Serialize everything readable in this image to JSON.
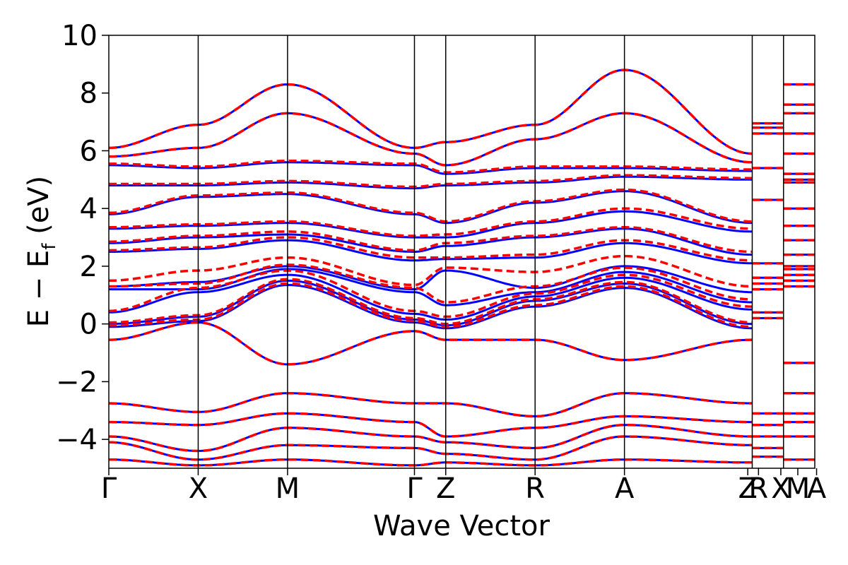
{
  "chart_data": {
    "type": "line",
    "title": "",
    "xlabel": "Wave Vector",
    "ylabel": "E − E",
    "ylabel_sub": "f",
    "ylabel_unit": " (eV)",
    "ylim": [
      -5,
      10
    ],
    "yticks": [
      -4,
      -2,
      0,
      2,
      4,
      6,
      8,
      10
    ],
    "ytick_labels": [
      "−4",
      "−2",
      "0",
      "2",
      "4",
      "6",
      "8",
      "10"
    ],
    "x_kpoint_positions": [
      0,
      1.0,
      2.0,
      3.42,
      3.77,
      4.77,
      5.77,
      7.2,
      7.55,
      7.9
    ],
    "x_kpoint_labels": [
      "Γ",
      "X",
      "M",
      "Γ",
      "Z",
      "R",
      "A",
      "Z",
      "R",
      "X",
      "M",
      "A"
    ],
    "x_kpoint_label_positions": [
      0,
      1.0,
      2.0,
      3.42,
      3.77,
      4.77,
      5.77,
      7.15,
      7.27,
      7.52,
      7.71,
      7.92
    ],
    "grid": false,
    "legend": "none",
    "series": [
      {
        "style": "solid",
        "color": "#0000ff",
        "bands": [
          [
            -0.55,
            0.05,
            -1.4,
            -0.25,
            -0.55,
            -0.55,
            -1.25,
            -0.55
          ],
          [
            -0.1,
            0.1,
            1.35,
            0.05,
            -0.15,
            0.6,
            1.25,
            -0.15
          ],
          [
            0.0,
            0.25,
            1.5,
            0.15,
            -0.05,
            0.8,
            1.4,
            0.0
          ],
          [
            0.4,
            1.1,
            1.7,
            0.35,
            0.15,
            0.95,
            1.6,
            0.5
          ],
          [
            1.2,
            1.2,
            1.9,
            1.1,
            0.65,
            1.1,
            1.8,
            0.75
          ],
          [
            1.3,
            1.45,
            2.0,
            1.2,
            1.85,
            1.25,
            2.0,
            1.1
          ],
          [
            2.5,
            2.6,
            2.9,
            2.2,
            2.25,
            2.3,
            2.8,
            2.1
          ],
          [
            2.8,
            3.0,
            3.1,
            2.5,
            2.7,
            3.0,
            3.3,
            2.4
          ],
          [
            3.3,
            3.4,
            3.5,
            3.0,
            3.0,
            3.5,
            3.9,
            3.2
          ],
          [
            3.8,
            4.4,
            4.5,
            3.8,
            3.5,
            4.2,
            4.6,
            3.5
          ],
          [
            4.8,
            4.8,
            4.9,
            4.7,
            4.8,
            4.9,
            5.1,
            5.0
          ],
          [
            5.5,
            5.4,
            5.6,
            5.5,
            5.2,
            5.4,
            5.4,
            5.3
          ],
          [
            5.8,
            6.1,
            7.3,
            5.9,
            5.5,
            6.4,
            7.3,
            5.6
          ],
          [
            6.1,
            6.9,
            8.3,
            6.1,
            6.3,
            6.9,
            8.8,
            5.9
          ],
          [
            -2.75,
            -3.05,
            -2.4,
            -2.75,
            -2.75,
            -3.2,
            -2.4,
            -2.75
          ],
          [
            -3.4,
            -3.5,
            -3.1,
            -3.4,
            -3.9,
            -3.6,
            -3.2,
            -3.4
          ],
          [
            -3.9,
            -4.4,
            -3.6,
            -3.9,
            -4.1,
            -4.3,
            -3.5,
            -3.9
          ],
          [
            -4.1,
            -4.7,
            -4.2,
            -4.3,
            -4.5,
            -4.7,
            -3.9,
            -4.2
          ],
          [
            -4.7,
            -4.9,
            -4.7,
            -4.9,
            -4.8,
            -4.9,
            -4.7,
            -4.8
          ]
        ]
      },
      {
        "style": "dashed",
        "color": "#ff0000",
        "bands": [
          [
            -0.55,
            0.05,
            -1.4,
            -0.25,
            -0.55,
            -0.55,
            -1.25,
            -0.55
          ],
          [
            -0.05,
            0.15,
            1.4,
            0.1,
            -0.1,
            0.65,
            1.3,
            -0.1
          ],
          [
            0.05,
            0.3,
            1.55,
            0.2,
            0.0,
            0.85,
            1.45,
            0.05
          ],
          [
            0.45,
            1.25,
            1.85,
            0.45,
            0.25,
            1.05,
            1.7,
            0.6
          ],
          [
            1.3,
            1.4,
            2.05,
            1.25,
            0.75,
            1.3,
            1.95,
            0.85
          ],
          [
            1.5,
            1.85,
            2.3,
            1.35,
            1.95,
            1.8,
            2.35,
            1.3
          ],
          [
            2.55,
            2.65,
            3.0,
            2.3,
            2.3,
            2.4,
            2.9,
            2.2
          ],
          [
            2.85,
            3.05,
            3.2,
            2.55,
            2.8,
            3.05,
            3.35,
            2.5
          ],
          [
            3.35,
            3.45,
            3.55,
            3.05,
            3.1,
            3.55,
            4.0,
            3.3
          ],
          [
            3.85,
            4.45,
            4.55,
            3.85,
            3.55,
            4.25,
            4.65,
            3.55
          ],
          [
            4.85,
            4.85,
            4.95,
            4.75,
            4.85,
            4.95,
            5.15,
            5.05
          ],
          [
            5.55,
            5.45,
            5.65,
            5.55,
            5.25,
            5.45,
            5.45,
            5.35
          ],
          [
            5.8,
            6.1,
            7.3,
            5.9,
            5.5,
            6.4,
            7.3,
            5.6
          ],
          [
            6.1,
            6.9,
            8.3,
            6.1,
            6.3,
            6.9,
            8.8,
            5.9
          ],
          [
            -2.75,
            -3.05,
            -2.4,
            -2.75,
            -2.75,
            -3.2,
            -2.4,
            -2.75
          ],
          [
            -3.4,
            -3.5,
            -3.1,
            -3.4,
            -3.9,
            -3.6,
            -3.2,
            -3.4
          ],
          [
            -3.9,
            -4.4,
            -3.6,
            -3.9,
            -4.1,
            -4.3,
            -3.5,
            -3.9
          ],
          [
            -4.1,
            -4.7,
            -4.2,
            -4.3,
            -4.5,
            -4.7,
            -3.9,
            -4.2
          ],
          [
            -4.7,
            -4.9,
            -4.7,
            -4.9,
            -4.8,
            -4.9,
            -4.7,
            -4.8
          ]
        ]
      }
    ],
    "short_segment_levels": {
      "RX": [
        6.95,
        6.8,
        6.6,
        5.4,
        4.3,
        2.1,
        1.6,
        1.4,
        1.2,
        0.4,
        0.2,
        -3.1,
        -3.5,
        -3.9,
        -4.3,
        -4.6
      ],
      "MA": [
        8.3,
        7.6,
        7.3,
        6.6,
        5.9,
        5.2,
        5.0,
        4.9,
        4.0,
        3.4,
        2.9,
        2.4,
        2.0,
        1.9,
        1.7,
        1.5,
        1.3,
        -1.35,
        -2.4,
        -3.1,
        -3.4,
        -3.9,
        -4.7
      ]
    }
  }
}
